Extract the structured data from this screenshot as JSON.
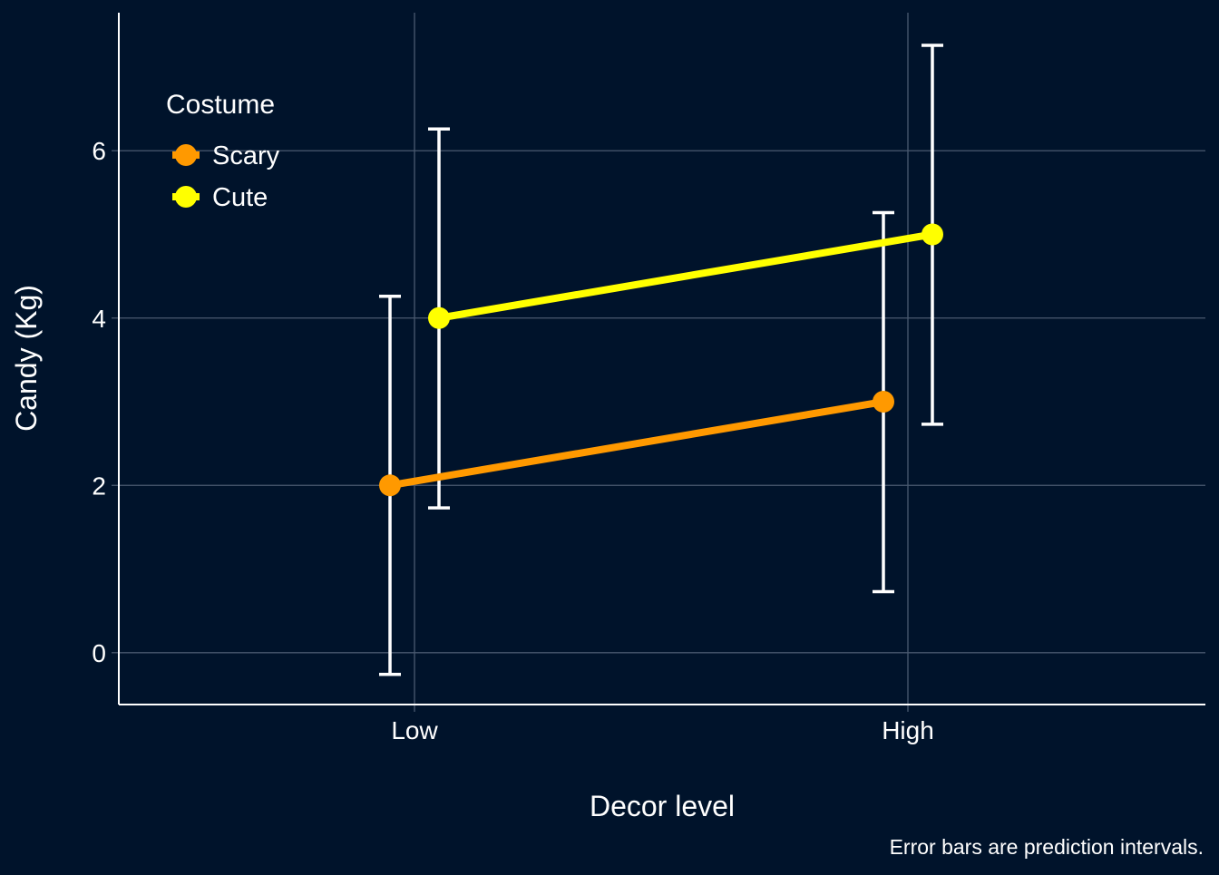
{
  "chart_data": {
    "type": "line",
    "categories": [
      "Low",
      "High"
    ],
    "xlabel": "Decor level",
    "ylabel": "Candy (Kg)",
    "yticks": [
      0,
      2,
      4,
      6
    ],
    "ylim": [
      -0.62,
      7.65
    ],
    "grid": true,
    "legend": {
      "title": "Costume",
      "placement": "top-left"
    },
    "series": [
      {
        "name": "Scary",
        "color": "#ff9900",
        "values": [
          2,
          3
        ],
        "lower": [
          -0.26,
          0.73
        ],
        "upper": [
          4.26,
          5.26
        ]
      },
      {
        "name": "Cute",
        "color": "#ffff00",
        "values": [
          4,
          5
        ],
        "lower": [
          1.73,
          2.73
        ],
        "upper": [
          6.26,
          7.26
        ]
      }
    ],
    "caption": "Error bars are prediction intervals."
  },
  "colors": {
    "background": "#00132b",
    "grid": "#4a5a70",
    "axis": "#ffffff",
    "error_bar": "#ffffff"
  }
}
